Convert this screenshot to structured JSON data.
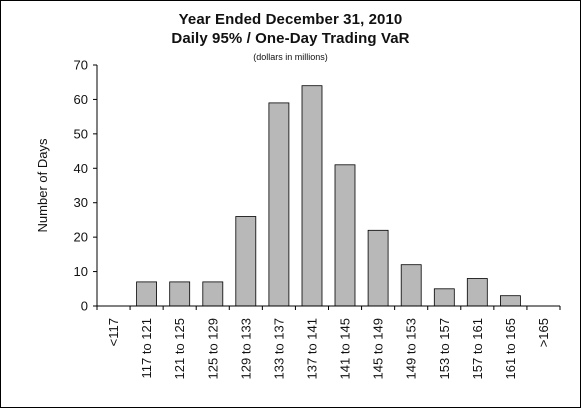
{
  "chart_data": {
    "type": "bar",
    "title": "Year Ended December 31, 2010",
    "subtitle": "Daily 95% / One-Day Trading VaR",
    "note": "(dollars in millions)",
    "xlabel": "",
    "ylabel": "Number of Days",
    "ylim": [
      0,
      70
    ],
    "yticks": [
      0,
      10,
      20,
      30,
      40,
      50,
      60,
      70
    ],
    "grid": false,
    "categories": [
      "<117",
      "117 to 121",
      "121 to 125",
      "125 to 129",
      "129 to 133",
      "133 to 137",
      "137 to 141",
      "141 to 145",
      "145 to 149",
      "149 to 153",
      "153 to 157",
      "157 to 161",
      "161 to 165",
      ">165"
    ],
    "values": [
      0,
      7,
      7,
      7,
      26,
      59,
      64,
      41,
      22,
      12,
      5,
      8,
      3,
      0
    ],
    "colors": {
      "bar_fill": "#b8b8b8",
      "bar_stroke": "#000000",
      "axis": "#000000"
    }
  }
}
